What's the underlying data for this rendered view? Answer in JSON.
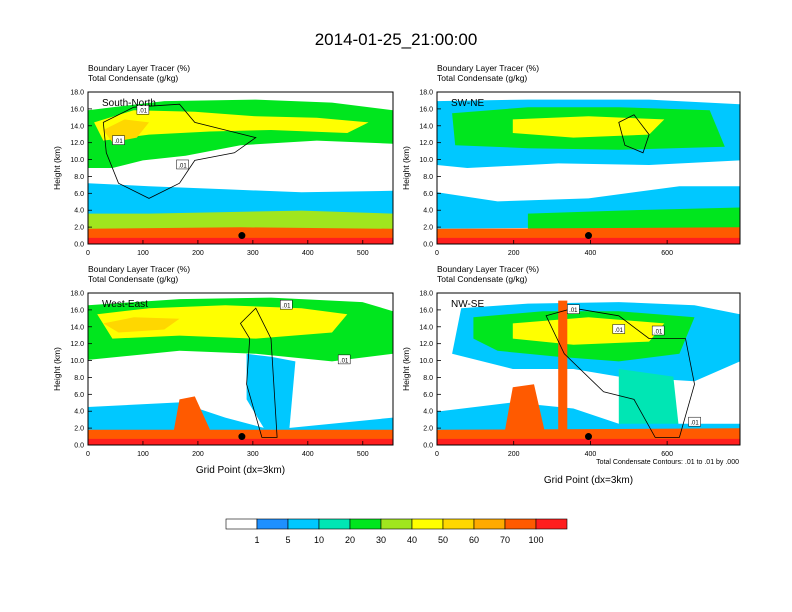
{
  "title": "2014-01-25_21:00:00",
  "xaxis_label": "Grid Point (dx=3km)",
  "footnote": "Total Condensate Contours: .01 to .01 by .000",
  "colors": {
    "levels": [
      "#ffffff",
      "#1e90ff",
      "#00c8ff",
      "#00e6b4",
      "#00e61e",
      "#a0e61e",
      "#ffff00",
      "#ffd700",
      "#ffaa00",
      "#ff5a00",
      "#ff1e1e"
    ]
  },
  "colorbar": {
    "labels": [
      "1",
      "5",
      "10",
      "20",
      "30",
      "40",
      "50",
      "60",
      "70",
      "100"
    ]
  },
  "chart_data": [
    {
      "type": "heatmap",
      "panel_label": "South-North",
      "header": [
        "Boundary Layer Tracer    (%)",
        "Total Condensate    (g/kg)"
      ],
      "ylabel": "Height (km)",
      "xlabel": "",
      "xlim": [
        0,
        555
      ],
      "ylim": [
        0,
        18
      ],
      "x_ticks": [
        0,
        100,
        200,
        300,
        400,
        500
      ],
      "y_ticks": [
        "0.0",
        "2.0",
        "4.0",
        "6.0",
        "8.0",
        "10.0",
        "12.0",
        "14.0",
        "16.0",
        "18.0"
      ],
      "marker": [
        280,
        1.0
      ],
      "contour_labels": [
        ".01",
        ".01",
        ".01"
      ]
    },
    {
      "type": "heatmap",
      "panel_label": "SW-NE",
      "header": [
        "Boundary Layer Tracer    (%)",
        "Total Condensate    (g/kg)"
      ],
      "ylabel": "Height (km)",
      "xlabel": "",
      "xlim": [
        0,
        790
      ],
      "ylim": [
        0,
        18
      ],
      "x_ticks": [
        0,
        200,
        400,
        600
      ],
      "y_ticks": [
        "0.0",
        "2.0",
        "4.0",
        "6.0",
        "8.0",
        "10.0",
        "12.0",
        "14.0",
        "16.0",
        "18.0"
      ],
      "marker": [
        395,
        1.0
      ],
      "contour_labels": []
    },
    {
      "type": "heatmap",
      "panel_label": "West-East",
      "header": [
        "Boundary Layer Tracer    (%)",
        "Total Condensate    (g/kg)"
      ],
      "ylabel": "Height (km)",
      "xlabel": "Grid Point (dx=3km)",
      "xlim": [
        0,
        555
      ],
      "ylim": [
        0,
        18
      ],
      "x_ticks": [
        0,
        100,
        200,
        300,
        400,
        500
      ],
      "y_ticks": [
        "0.0",
        "2.0",
        "4.0",
        "6.0",
        "8.0",
        "10.0",
        "12.0",
        "14.0",
        "16.0",
        "18.0"
      ],
      "marker": [
        280,
        1.0
      ],
      "contour_labels": [
        ".01",
        ".01"
      ]
    },
    {
      "type": "heatmap",
      "panel_label": "NW-SE",
      "header": [
        "Boundary Layer Tracer    (%)",
        "Total Condensate    (g/kg)"
      ],
      "ylabel": "Height (km)",
      "xlabel": "Grid Point (dx=3km)",
      "xlim": [
        0,
        790
      ],
      "ylim": [
        0,
        18
      ],
      "x_ticks": [
        0,
        200,
        400,
        600
      ],
      "y_ticks": [
        "0.0",
        "2.0",
        "4.0",
        "6.0",
        "8.0",
        "10.0",
        "12.0",
        "14.0",
        "16.0",
        "18.0"
      ],
      "marker": [
        395,
        1.0
      ],
      "contour_labels": [
        ".01",
        ".01",
        ".01",
        ".01"
      ]
    }
  ]
}
